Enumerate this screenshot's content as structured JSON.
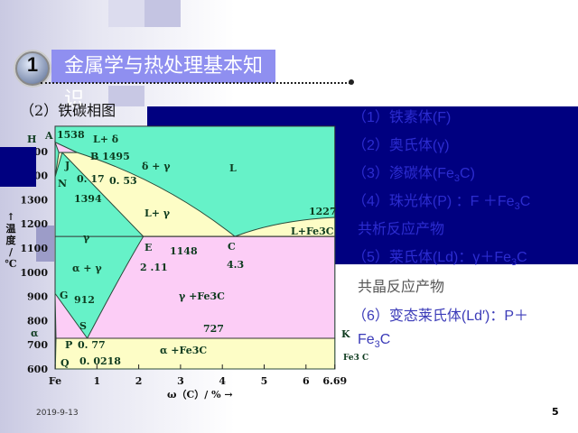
{
  "header": {
    "number": "1",
    "title": "金属学与热处理基本知识"
  },
  "subtitle": "（2）铁碳相图",
  "list": [
    {
      "parts": [
        "（1）铁素体(F)"
      ]
    },
    {
      "parts": [
        "（2）奥氏体(γ)"
      ]
    },
    {
      "parts": [
        "（3）渗碳体(Fe",
        "3",
        "C)"
      ]
    },
    {
      "parts": [
        "（4）珠光体(P) ：F ＋Fe",
        "3",
        "C"
      ]
    },
    {
      "parts": [
        "共析反应产物"
      ]
    },
    {
      "parts": [
        "（5）莱氏体(Ld)：γ＋Fe",
        "3",
        "C"
      ]
    },
    {
      "parts": [
        "共晶反应产物"
      ]
    },
    {
      "parts": [
        "（6）变态莱氏体(Ld′)：P＋"
      ]
    },
    {
      "parts": [
        "Fe",
        "3",
        "C"
      ]
    }
  ],
  "footer": {
    "date": "2019-9-13",
    "page": "5"
  },
  "colors": {
    "band": "#000080",
    "liquid": "#66f2c8",
    "pink": "#fccdf6",
    "yellow": "#fdfdc6",
    "title_box": "#8f8ff0"
  },
  "chart_data": {
    "type": "phase-diagram",
    "xlabel": "ω（C）/ % →",
    "ylabel": [
      "↑",
      "温",
      "度",
      "/",
      "℃"
    ],
    "xlim": [
      0,
      6.69
    ],
    "ylim": [
      600,
      1604
    ],
    "xticks": [
      {
        "v": 0,
        "label": "Fe"
      },
      {
        "v": 1,
        "label": "1"
      },
      {
        "v": 2,
        "label": "2"
      },
      {
        "v": 3,
        "label": "3"
      },
      {
        "v": 4,
        "label": "4"
      },
      {
        "v": 5,
        "label": "5"
      },
      {
        "v": 6,
        "label": "6"
      },
      {
        "v": 6.69,
        "label": "6.69"
      }
    ],
    "yticks": [
      600,
      700,
      800,
      900,
      1000,
      1100,
      1200,
      1300,
      1400,
      1500
    ],
    "points": {
      "A": [
        0,
        1538
      ],
      "H": [
        0.09,
        1495
      ],
      "J": [
        0.17,
        1495
      ],
      "B": [
        0.53,
        1495
      ],
      "N": [
        0,
        1394
      ],
      "E": [
        2.11,
        1148
      ],
      "C": [
        4.3,
        1148
      ],
      "F": [
        6.69,
        1148
      ],
      "D": [
        6.69,
        1227
      ],
      "G": [
        0,
        912
      ],
      "S": [
        0.77,
        727
      ],
      "P": [
        0.0218,
        727
      ],
      "K": [
        6.69,
        727
      ],
      "Q": [
        0.006,
        600
      ]
    },
    "labels": {
      "H": "H",
      "A": "A",
      "t1538": "1538",
      "Ld": "L+ δ",
      "B": "B 1495",
      "dg": "δ + γ",
      "L": "L",
      "J": "J",
      "N": "N",
      "c017": "0. 17",
      "c053": "0. 53",
      "t1394": "1394",
      "Lg": "L+ γ",
      "t1227": "1227",
      "LFe": "L+Fe3C",
      "g": "γ",
      "E": "E",
      "t1148": "1148",
      "C": "C",
      "c211": "2 .11",
      "c43": "4.3",
      "ag": "α + γ",
      "gFe": "γ +Fe3C",
      "G": "G",
      "t912": "912",
      "S": "S",
      "t727": "727",
      "K": "K",
      "a": "α",
      "P": "P",
      "c077": "0. 77",
      "aFe": "α +Fe3C",
      "Q": "Q",
      "c00218": "0. 0218",
      "Fe3C": "Fe3 C"
    }
  }
}
